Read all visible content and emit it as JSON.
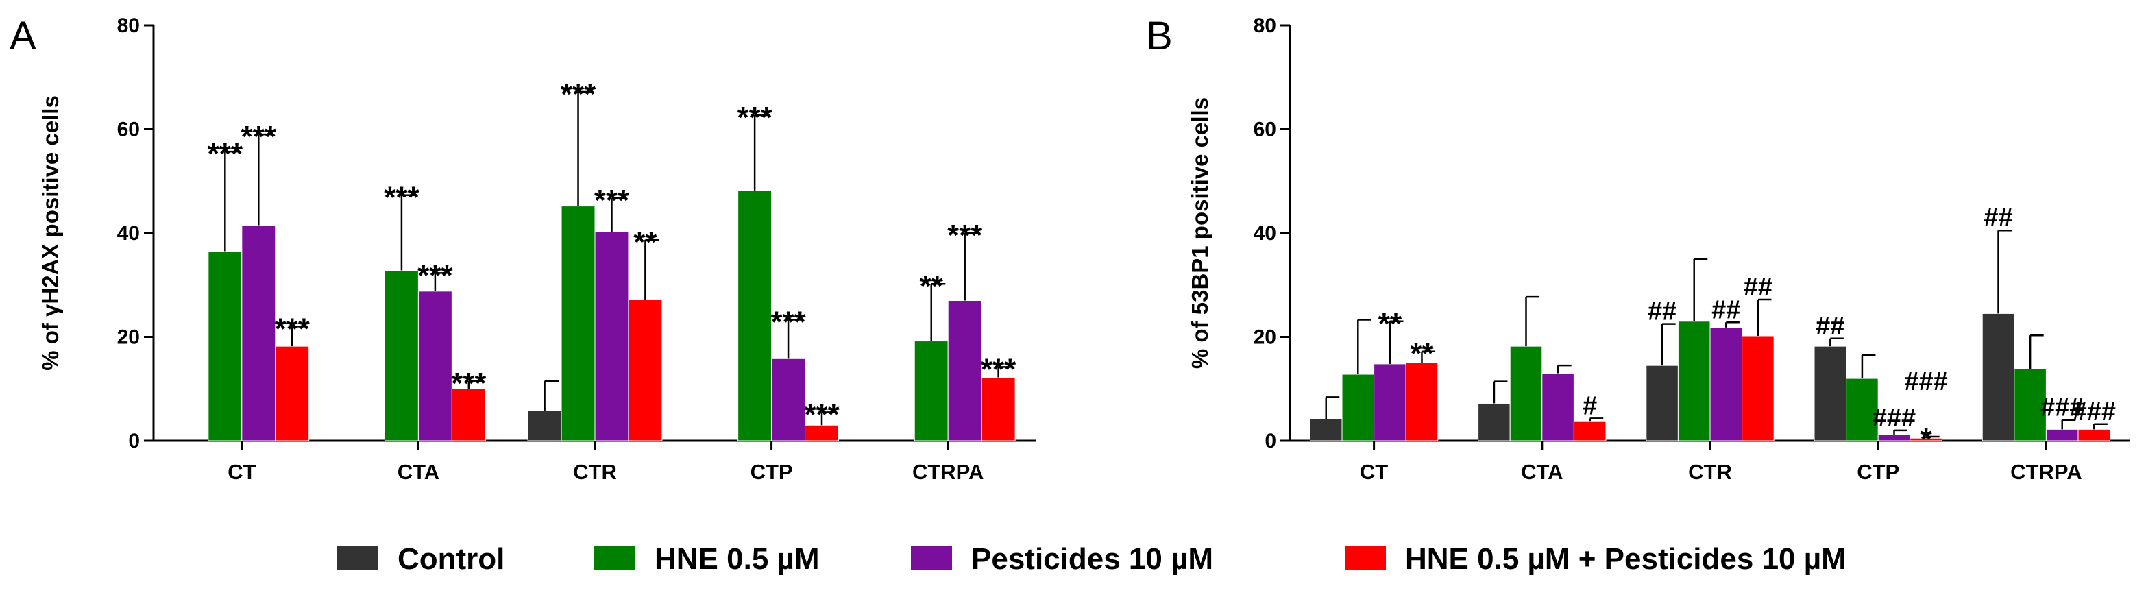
{
  "colors": {
    "control": "#333333",
    "hne": "#008000",
    "pesticides": "#7a0f9e",
    "combo": "#ff0000"
  },
  "legend": [
    {
      "label": "Control",
      "color": "#333333"
    },
    {
      "label": "HNE 0.5 µM",
      "color": "#008000"
    },
    {
      "label": "Pesticides 10 µM",
      "color": "#7a0f9e"
    },
    {
      "label": "HNE 0.5 µM + Pesticides 10 µM",
      "color": "#ff0000"
    }
  ],
  "chart_data": [
    {
      "type": "bar",
      "panel": "A",
      "ylabel": "% of γH2AX positive cells",
      "ylim": [
        0,
        80
      ],
      "yticks": [
        0,
        20,
        40,
        60,
        80
      ],
      "categories": [
        "CT",
        "CTA",
        "CTR",
        "CTP",
        "CTRPA"
      ],
      "series": [
        {
          "name": "Control",
          "values": [
            0,
            0,
            5.8,
            0,
            0
          ],
          "errors": [
            0,
            0,
            5.7,
            0,
            0
          ],
          "sig": [
            "",
            "",
            "",
            "",
            ""
          ]
        },
        {
          "name": "HNE 0.5 µM",
          "values": [
            36.5,
            32.8,
            45.2,
            48.2,
            19.2
          ],
          "errors": [
            19.2,
            14.5,
            22.0,
            14.5,
            11.0
          ],
          "sig": [
            "***",
            "***",
            "***",
            "***",
            "**"
          ]
        },
        {
          "name": "Pesticides 10 µM",
          "values": [
            41.5,
            28.8,
            40.2,
            15.8,
            27.0
          ],
          "errors": [
            17.5,
            3.5,
            6.5,
            7.5,
            13.0
          ],
          "sig": [
            "***",
            "***",
            "***",
            "***",
            "***"
          ]
        },
        {
          "name": "HNE 0.5 µM + Pesticides 10 µM",
          "values": [
            18.2,
            10.0,
            27.2,
            3.0,
            12.2
          ],
          "errors": [
            3.8,
            1.5,
            11.5,
            2.5,
            2.0
          ],
          "sig": [
            "***",
            "***",
            "**",
            "***",
            "***"
          ]
        }
      ]
    },
    {
      "type": "bar",
      "panel": "B",
      "ylabel": "% of 53BP1 positive cells",
      "ylim": [
        0,
        80
      ],
      "yticks": [
        0,
        20,
        40,
        60,
        80
      ],
      "categories": [
        "CT",
        "CTA",
        "CTR",
        "CTP",
        "CTRPA"
      ],
      "series": [
        {
          "name": "Control",
          "values": [
            4.2,
            7.2,
            14.5,
            18.2,
            24.5
          ],
          "errors": [
            4.2,
            4.2,
            8.0,
            1.5,
            16.0
          ],
          "sig": [
            "",
            "",
            "##",
            "##",
            "##"
          ]
        },
        {
          "name": "HNE 0.5 µM",
          "values": [
            12.8,
            18.2,
            23.0,
            12.0,
            13.8
          ],
          "errors": [
            10.5,
            9.5,
            12.0,
            4.5,
            6.5
          ],
          "sig": [
            "",
            "",
            "",
            "",
            ""
          ]
        },
        {
          "name": "Pesticides 10 µM",
          "values": [
            14.8,
            13.0,
            21.8,
            1.2,
            2.2
          ],
          "errors": [
            8.2,
            1.5,
            1.0,
            0.8,
            1.8
          ],
          "sig": [
            "**",
            "",
            "##",
            "###",
            "###"
          ]
        },
        {
          "name": "HNE 0.5 µM + Pesticides 10 µM",
          "values": [
            15.0,
            3.8,
            20.2,
            0.5,
            2.2
          ],
          "errors": [
            2.2,
            0.5,
            7.0,
            0.3,
            1.0
          ],
          "sig": [
            "**",
            "#",
            "##",
            "*",
            "###"
          ]
        }
      ],
      "extra_annotations": [
        {
          "category": "CTP",
          "series": 3,
          "text": "###",
          "level": 2
        }
      ]
    }
  ]
}
